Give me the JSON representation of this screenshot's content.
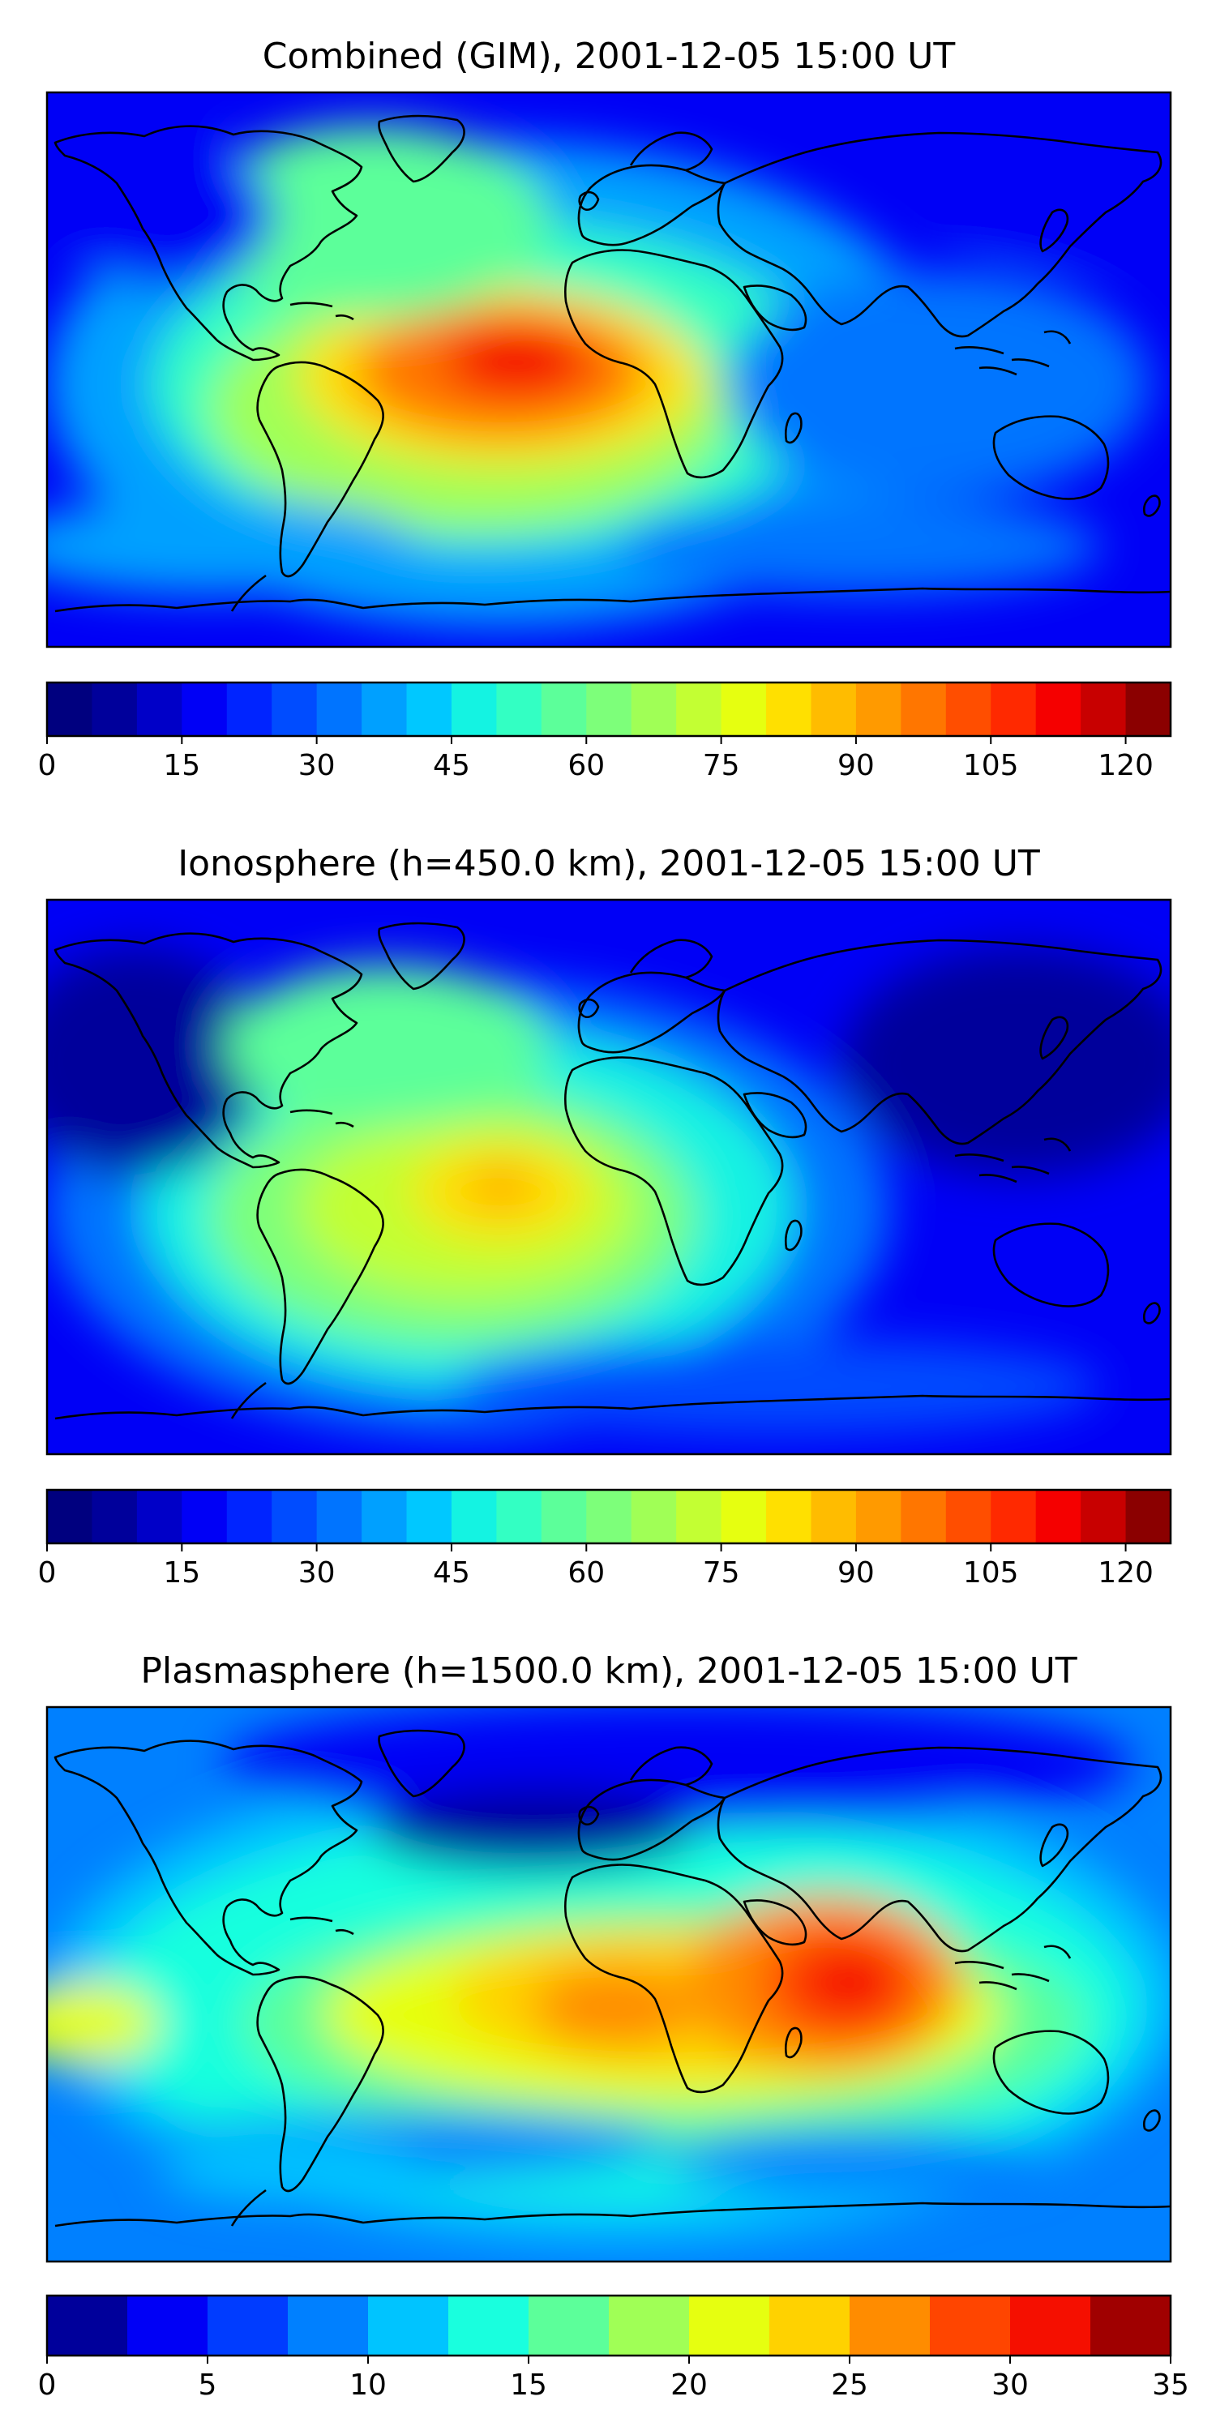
{
  "panels": [
    {
      "id": "combined",
      "title": "Combined (GIM), 2001-12-05 15:00 UT",
      "colorbar": {
        "min": 0,
        "max": 125,
        "step": 5,
        "tick_labels": [
          "0",
          "15",
          "30",
          "45",
          "60",
          "75",
          "90",
          "105",
          "120"
        ],
        "colors": [
          "#00007f",
          "#00009b",
          "#0000c8",
          "#0000f6",
          "#0024ff",
          "#004cff",
          "#0074ff",
          "#00a0ff",
          "#00c8ff",
          "#14f3e2",
          "#33ffc3",
          "#5cff9a",
          "#7dff7a",
          "#a0ff56",
          "#c3ff33",
          "#e6ff10",
          "#ffe000",
          "#ffbc00",
          "#ff9a00",
          "#ff7600",
          "#ff4e00",
          "#ff2900",
          "#f50000",
          "#c80000",
          "#8b0000"
        ]
      }
    },
    {
      "id": "ionosphere",
      "title": "Ionosphere  (h=450.0 km), 2001-12-05 15:00 UT",
      "colorbar": {
        "min": 0,
        "max": 125,
        "step": 5,
        "tick_labels": [
          "0",
          "15",
          "30",
          "45",
          "60",
          "75",
          "90",
          "105",
          "120"
        ],
        "colors": [
          "#00007f",
          "#00009b",
          "#0000c8",
          "#0000f6",
          "#0024ff",
          "#004cff",
          "#0074ff",
          "#00a0ff",
          "#00c8ff",
          "#14f3e2",
          "#33ffc3",
          "#5cff9a",
          "#7dff7a",
          "#a0ff56",
          "#c3ff33",
          "#e6ff10",
          "#ffe000",
          "#ffbc00",
          "#ff9a00",
          "#ff7600",
          "#ff4e00",
          "#ff2900",
          "#f50000",
          "#c80000",
          "#8b0000"
        ]
      }
    },
    {
      "id": "plasmasphere",
      "title": "Plasmasphere (h=1500.0 km), 2001-12-05 15:00 UT",
      "colorbar": {
        "min": 0,
        "max": 35,
        "step": 2.5,
        "tick_labels": [
          "0",
          "5",
          "10",
          "15",
          "20",
          "25",
          "30",
          "35"
        ],
        "colors": [
          "#00009b",
          "#0000f6",
          "#003cff",
          "#0080ff",
          "#00c4ff",
          "#19ffde",
          "#5cff9a",
          "#a0ff56",
          "#e6ff10",
          "#ffd200",
          "#ff8c00",
          "#ff4500",
          "#f50f00",
          "#a00000"
        ]
      }
    }
  ]
}
